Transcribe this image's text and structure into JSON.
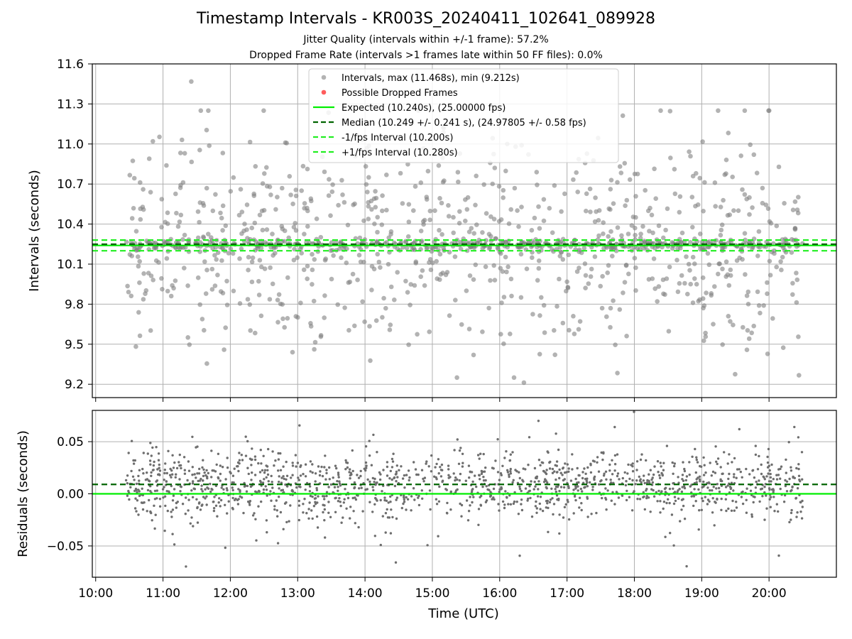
{
  "title": "Timestamp Intervals - KR003S_20240411_102641_089928",
  "subtitle1": "Jitter Quality (intervals within +/-1 frame): 57.2%",
  "subtitle2": "Dropped Frame Rate (intervals >1 frames late within 50 FF files): 0.0%",
  "colors": {
    "intervals": "#808080",
    "dropped": "#ff3333",
    "expected": "#00ee00",
    "median": "#006400",
    "fps_interval": "#22ee22",
    "grid": "#b0b0b0"
  },
  "chart_data": [
    {
      "type": "scatter",
      "ylabel": "Intervals (seconds)",
      "xlabel": "",
      "xlim_hours": [
        9.95,
        21.0
      ],
      "ylim": [
        9.1,
        11.6
      ],
      "yticks": [
        9.2,
        9.5,
        9.8,
        10.1,
        10.4,
        10.7,
        11.0,
        11.3,
        11.6
      ],
      "ytick_labels": [
        "9.2",
        "9.5",
        "9.8",
        "10.1",
        "10.4",
        "10.7",
        "11.0",
        "11.3",
        "11.6"
      ],
      "grid": true,
      "legend_position": "top-center",
      "series": [
        {
          "name": "Intervals, max (11.468s), min (9.212s)",
          "kind": "points",
          "max": 11.468,
          "min": 9.212,
          "median": 10.249,
          "spread": 0.241,
          "time_range": [
            10.45,
            20.5
          ]
        },
        {
          "name": "Possible Dropped Frames",
          "kind": "points",
          "values": []
        }
      ],
      "lines": [
        {
          "name": "Expected (10.240s), (25.00000 fps)",
          "y": 10.24,
          "style": "solid"
        },
        {
          "name": "Median (10.249 +/- 0.241 s), (24.97805 +/- 0.58 fps)",
          "y": 10.249,
          "style": "dashed"
        },
        {
          "name": "-1/fps Interval (10.200s)",
          "y": 10.2,
          "style": "dashed"
        },
        {
          "name": "+1/fps Interval (10.280s)",
          "y": 10.28,
          "style": "dashed"
        }
      ]
    },
    {
      "type": "scatter",
      "ylabel": "Residuals (seconds)",
      "xlabel": "Time (UTC)",
      "xlim_hours": [
        9.95,
        21.0
      ],
      "ylim": [
        -0.08,
        0.08
      ],
      "yticks": [
        -0.05,
        0.0,
        0.05
      ],
      "ytick_labels": [
        "−0.05",
        "0.00",
        "0.05"
      ],
      "xticks_hours": [
        10,
        11,
        12,
        13,
        14,
        15,
        16,
        17,
        18,
        19,
        20
      ],
      "xtick_labels": [
        "10:00",
        "11:00",
        "12:00",
        "13:00",
        "14:00",
        "15:00",
        "16:00",
        "17:00",
        "18:00",
        "19:00",
        "20:00"
      ],
      "grid": true,
      "series": [
        {
          "name": "residuals",
          "kind": "points",
          "center": 0.009,
          "time_range": [
            10.45,
            20.5
          ]
        }
      ],
      "lines": [
        {
          "name": "median residual",
          "y": 0.009,
          "style": "dashed"
        },
        {
          "name": "zero",
          "y": 0.0,
          "style": "solid"
        }
      ]
    }
  ]
}
